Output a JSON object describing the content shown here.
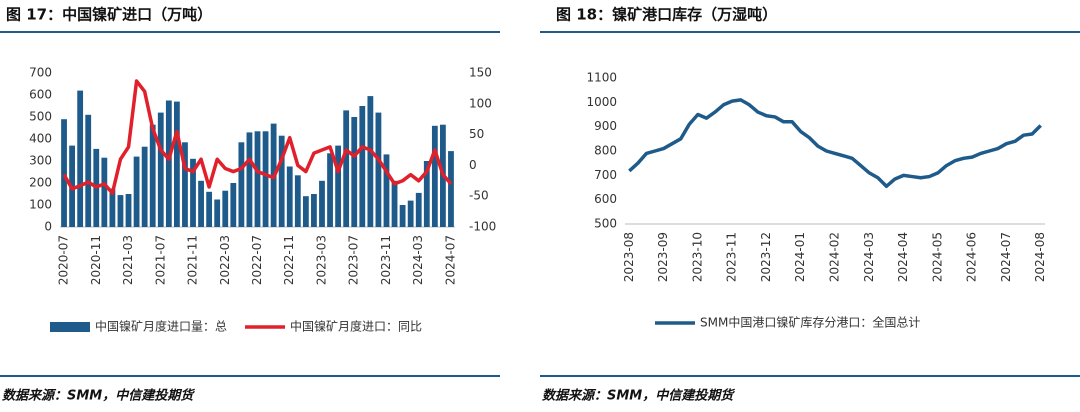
{
  "chart_data": [
    {
      "type": "bar",
      "title": "图 17：中国镍矿进口（万吨）",
      "source": "数据来源：SMM，中信建投期货",
      "categories": [
        "2020-07",
        null,
        null,
        null,
        "2020-11",
        null,
        null,
        null,
        "2021-03",
        null,
        null,
        null,
        "2021-07",
        null,
        null,
        null,
        "2021-11",
        null,
        null,
        null,
        "2022-03",
        null,
        null,
        null,
        "2022-07",
        null,
        null,
        null,
        "2022-11",
        null,
        null,
        null,
        "2023-03",
        null,
        null,
        null,
        "2023-07",
        null,
        null,
        null,
        "2023-11",
        null,
        null,
        null,
        "2024-03",
        null,
        null,
        null,
        "2024-07"
      ],
      "series": [
        {
          "name": "中国镍矿月度进口量：总",
          "type": "bar",
          "color": "#1f5b8a",
          "values": [
            490,
            370,
            620,
            510,
            355,
            315,
            175,
            145,
            150,
            320,
            365,
            465,
            520,
            575,
            570,
            385,
            310,
            210,
            160,
            125,
            165,
            200,
            385,
            430,
            435,
            435,
            470,
            415,
            275,
            235,
            140,
            150,
            210,
            335,
            370,
            530,
            500,
            550,
            595,
            520,
            330,
            210,
            100,
            120,
            155,
            300,
            460,
            465,
            345
          ]
        },
        {
          "name": "中国镍矿月度进口：同比",
          "type": "line",
          "axis": "y2",
          "color": "#e0202a",
          "values": [
            -15,
            -38,
            -33,
            -27,
            -35,
            -30,
            -45,
            10,
            30,
            137,
            120,
            60,
            25,
            10,
            55,
            -5,
            -10,
            10,
            -35,
            10,
            -5,
            -10,
            -5,
            10,
            -10,
            -15,
            -20,
            10,
            45,
            0,
            -10,
            20,
            25,
            30,
            -10,
            25,
            15,
            30,
            25,
            10,
            -10,
            -30,
            -25,
            -15,
            -25,
            -10,
            25,
            -15,
            -30
          ]
        }
      ],
      "ylim": [
        0,
        700
      ],
      "yticks": [
        0,
        100,
        200,
        300,
        400,
        500,
        600,
        700
      ],
      "y2lim": [
        -100,
        150
      ],
      "y2ticks": [
        -100,
        -50,
        0,
        50,
        100,
        150
      ],
      "grid": false,
      "legend": "bottom"
    },
    {
      "type": "line",
      "title": "图 18：镍矿港口库存（万湿吨）",
      "source": "数据来源：SMM，中信建投期货",
      "categories": [
        "2023-08",
        null,
        null,
        null,
        "2023-09",
        null,
        null,
        null,
        "2023-10",
        null,
        null,
        null,
        "2023-11",
        null,
        null,
        null,
        "2023-12",
        null,
        null,
        null,
        "2024-01",
        null,
        null,
        null,
        "2024-02",
        null,
        null,
        null,
        "2024-03",
        null,
        null,
        null,
        "2024-04",
        null,
        null,
        null,
        "2024-05",
        null,
        null,
        null,
        "2024-06",
        null,
        null,
        null,
        "2024-07",
        null,
        null,
        null,
        "2024-08"
      ],
      "series": [
        {
          "name": "SMM中国港口镍矿库存分港口：全国总计",
          "type": "line",
          "color": "#1f5b8a",
          "values": [
            718,
            750,
            790,
            800,
            810,
            830,
            850,
            910,
            950,
            935,
            960,
            990,
            1005,
            1010,
            990,
            960,
            945,
            940,
            920,
            920,
            880,
            855,
            820,
            800,
            790,
            780,
            770,
            740,
            710,
            690,
            655,
            685,
            700,
            695,
            690,
            695,
            710,
            740,
            760,
            770,
            775,
            790,
            800,
            810,
            830,
            840,
            865,
            870,
            905
          ]
        }
      ],
      "ylim": [
        500,
        1100
      ],
      "yticks": [
        500,
        600,
        700,
        800,
        900,
        1000,
        1100
      ],
      "grid": false,
      "legend": "bottom"
    }
  ]
}
